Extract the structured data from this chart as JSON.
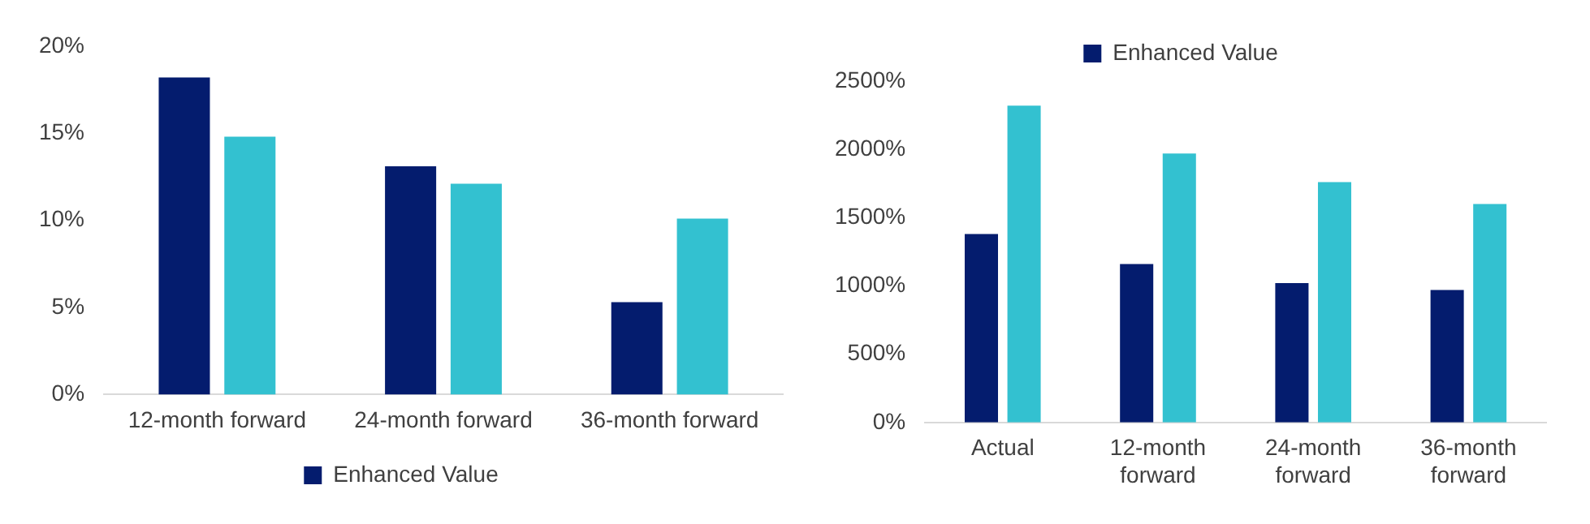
{
  "chart_data": [
    {
      "type": "bar",
      "categories": [
        "12-month forward",
        "24-month forward",
        "36-month forward"
      ],
      "series": [
        {
          "name": "Enhanced Value",
          "color": "#041c6e",
          "values": [
            18.2,
            13.1,
            5.3
          ]
        },
        {
          "color": "#33c1d0",
          "values": [
            14.8,
            12.1,
            10.1
          ]
        }
      ],
      "ylim": [
        0,
        20
      ],
      "yticks": [
        {
          "value": 0,
          "label": "0%"
        },
        {
          "value": 5,
          "label": "5%"
        },
        {
          "value": 10,
          "label": "10%"
        },
        {
          "value": 15,
          "label": "15%"
        },
        {
          "value": 20,
          "label": "20%"
        }
      ],
      "grid": false,
      "legend": "bottom"
    },
    {
      "type": "bar",
      "categories": [
        "Actual",
        "12-month forward",
        "24-month forward",
        "36-month forward"
      ],
      "series": [
        {
          "name": "Enhanced Value",
          "color": "#041c6e",
          "values": [
            1380,
            1160,
            1020,
            970
          ]
        },
        {
          "color": "#33c1d0",
          "values": [
            2320,
            1970,
            1760,
            1600
          ]
        }
      ],
      "ylim": [
        0,
        2500
      ],
      "yticks": [
        {
          "value": 0,
          "label": "0%"
        },
        {
          "value": 500,
          "label": "500%"
        },
        {
          "value": 1000,
          "label": "1000%"
        },
        {
          "value": 1500,
          "label": "1500%"
        },
        {
          "value": 2000,
          "label": "2000%"
        },
        {
          "value": 2500,
          "label": "2500%"
        }
      ],
      "grid": false,
      "legend": "top"
    }
  ]
}
